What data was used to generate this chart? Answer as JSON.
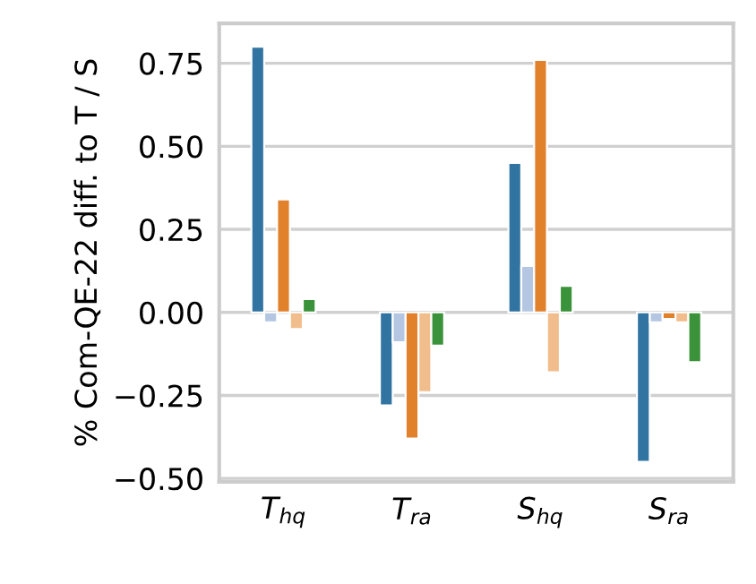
{
  "chart_data": {
    "type": "bar",
    "ylabel": "% Com-QE-22 diff. to T / S",
    "categories": [
      "T$_{hq}$",
      "T$_{ra}$",
      "S$_{hq}$",
      "S$_{ra}$"
    ],
    "series": [
      {
        "color": "#3274a1",
        "values": [
          0.8,
          -0.28,
          0.45,
          -0.45
        ]
      },
      {
        "color": "#b4c6e1",
        "values": [
          -0.03,
          -0.09,
          0.14,
          -0.03
        ]
      },
      {
        "color": "#e1812c",
        "values": [
          0.34,
          -0.38,
          0.76,
          -0.02
        ]
      },
      {
        "color": "#f2bd8c",
        "values": [
          -0.05,
          -0.24,
          -0.18,
          -0.03
        ]
      },
      {
        "color": "#3a923a",
        "values": [
          0.04,
          -0.1,
          0.08,
          -0.15
        ]
      }
    ],
    "ylim": [
      -0.51,
      0.87
    ],
    "yticks": [
      {
        "value": -0.5,
        "label": "−0.50"
      },
      {
        "value": -0.25,
        "label": "−0.25"
      },
      {
        "value": 0,
        "label": "0.00"
      },
      {
        "value": 0.25,
        "label": "0.25"
      },
      {
        "value": 0.5,
        "label": "0.50"
      },
      {
        "value": 0.75,
        "label": "0.75"
      }
    ],
    "grid": "y",
    "legend": false
  }
}
